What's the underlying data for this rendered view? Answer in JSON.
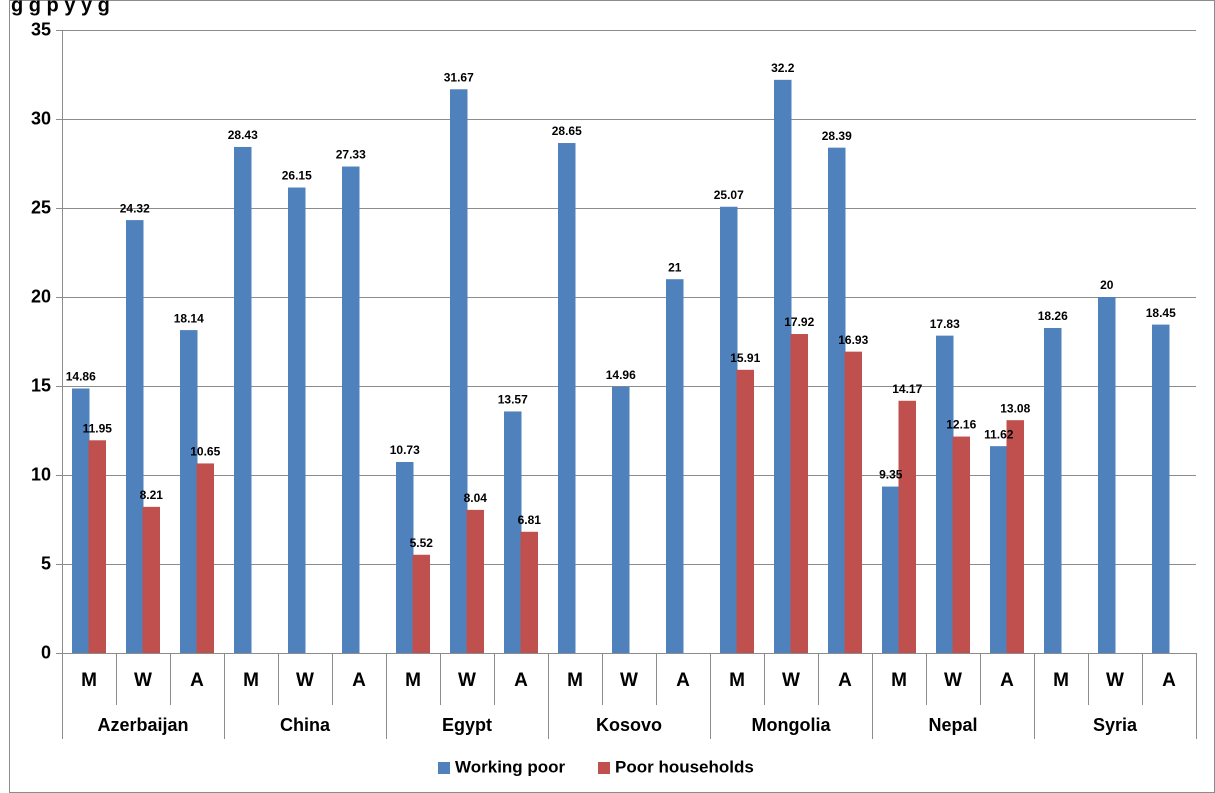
{
  "chart_data": {
    "type": "bar",
    "title": "g",
    "title_visible_text": "g                    g p      y        y   g",
    "xlabel": "",
    "ylabel": "",
    "ylim": [
      0,
      35
    ],
    "y_ticks": [
      0,
      5,
      10,
      15,
      20,
      25,
      30,
      35
    ],
    "grid": true,
    "legend_position": "bottom",
    "groups": [
      "Azerbaijan",
      "China",
      "Egypt",
      "Kosovo",
      "Mongolia",
      "Nepal",
      "Syria"
    ],
    "subcategories": [
      "M",
      "W",
      "A"
    ],
    "categories": [
      "M",
      "W",
      "A",
      "M",
      "W",
      "A",
      "M",
      "W",
      "A",
      "M",
      "W",
      "A",
      "M",
      "W",
      "A",
      "M",
      "W",
      "A",
      "M",
      "W",
      "A"
    ],
    "series": [
      {
        "name": "Working poor",
        "color": "#4f81bd",
        "values": [
          14.86,
          24.32,
          18.14,
          28.43,
          26.15,
          27.33,
          10.73,
          31.67,
          13.57,
          28.65,
          14.96,
          21,
          25.07,
          32.2,
          28.39,
          9.35,
          17.83,
          11.62,
          18.26,
          20,
          18.45
        ],
        "labels": [
          "14.86",
          "24.32",
          "18.14",
          "28.43",
          "26.15",
          "27.33",
          "10.73",
          "31.67",
          "13.57",
          "28.65",
          "14.96",
          "21",
          "25.07",
          "32.2",
          "28.39",
          "9.35",
          "17.83",
          "11.62",
          "18.26",
          "20",
          "18.45"
        ]
      },
      {
        "name": "Poor households",
        "color": "#c0504d",
        "values": [
          11.95,
          8.21,
          10.65,
          null,
          null,
          null,
          5.52,
          8.04,
          6.81,
          null,
          null,
          null,
          15.91,
          17.92,
          16.93,
          14.17,
          12.16,
          13.08,
          null,
          null,
          null
        ],
        "labels": [
          "11.95",
          "8.21",
          "10.65",
          null,
          null,
          null,
          "5.52",
          "8.04",
          "6.81",
          null,
          null,
          null,
          "15.91",
          "17.92",
          "16.93",
          "14.17",
          "12.16",
          "13.08",
          null,
          null,
          null
        ]
      }
    ]
  }
}
